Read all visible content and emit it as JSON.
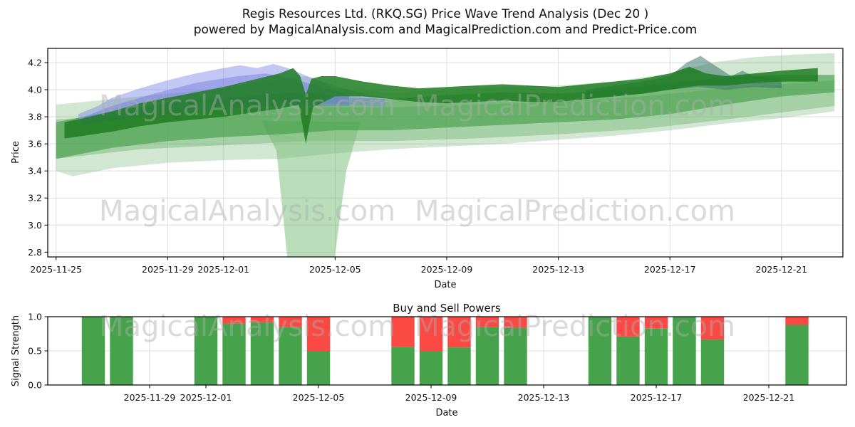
{
  "header": {
    "title": "Regis Resources Ltd. (RKQ.SG) Price Wave Trend Analysis (Dec 20 )",
    "subtitle": "powered by MagicalAnalysis.com and MagicalPrediction.com and Predict-Price.com"
  },
  "watermarks": {
    "left": "MagicalAnalysis.com",
    "right": "MagicalPrediction.com"
  },
  "colors": {
    "buy_green": "#47a34b",
    "sell_red": "#fb4a44",
    "dark_band": "#1e7d22",
    "medium_band": "#3c9b41",
    "light_band": "#69b069",
    "blue_band": "#7b83e6",
    "grid": "#dcdcdc",
    "spine": "#000000"
  },
  "chart_data": [
    {
      "type": "area",
      "name": "price-wave-trend",
      "ylabel": "Price",
      "xlabel": "Date",
      "x_unit": "days since 2025-11-25",
      "xlim": [
        -0.3,
        28.2
      ],
      "ylim": [
        2.765,
        4.305
      ],
      "grid": true,
      "xticks": {
        "positions": [
          0,
          4,
          6,
          10,
          14,
          18,
          22,
          26
        ],
        "labels": [
          "2025-11-25",
          "2025-11-29",
          "2025-12-01",
          "2025-12-05",
          "2025-12-09",
          "2025-12-13",
          "2025-12-17",
          "2025-12-21"
        ]
      },
      "yticks": {
        "values": [
          2.8,
          3.0,
          3.2,
          3.4,
          3.6,
          3.8,
          4.0,
          4.2
        ],
        "labels": [
          "2.8",
          "3.0",
          "3.2",
          "3.4",
          "3.6",
          "3.8",
          "4.0",
          "4.2"
        ]
      },
      "bands": [
        {
          "name": "outer-light-band",
          "color": "#69b069",
          "opacity": 0.3,
          "top": [
            [
              0,
              3.89
            ],
            [
              2,
              3.93
            ],
            [
              4,
              3.97
            ],
            [
              6,
              4.01
            ],
            [
              7.5,
              4.06
            ],
            [
              9,
              4.1
            ],
            [
              10,
              4.01
            ],
            [
              12,
              3.98
            ],
            [
              14,
              4.0
            ],
            [
              16,
              4.02
            ],
            [
              18,
              4.03
            ],
            [
              20,
              4.06
            ],
            [
              22,
              4.12
            ],
            [
              23.5,
              4.2
            ],
            [
              25,
              4.24
            ],
            [
              26.5,
              4.26
            ],
            [
              27.9,
              4.27
            ]
          ],
          "bottom": [
            [
              0,
              3.4
            ],
            [
              0.6,
              3.36
            ],
            [
              2,
              3.42
            ],
            [
              4,
              3.46
            ],
            [
              6,
              3.48
            ],
            [
              8,
              3.49
            ],
            [
              10,
              3.53
            ],
            [
              12,
              3.56
            ],
            [
              14,
              3.58
            ],
            [
              16,
              3.6
            ],
            [
              18,
              3.63
            ],
            [
              20,
              3.66
            ],
            [
              22,
              3.7
            ],
            [
              24,
              3.75
            ],
            [
              26,
              3.79
            ],
            [
              27.9,
              3.84
            ]
          ]
        },
        {
          "name": "second-light-band",
          "color": "#57a657",
          "opacity": 0.35,
          "top": [
            [
              0,
              3.78
            ],
            [
              3,
              3.82
            ],
            [
              6,
              3.85
            ],
            [
              9,
              3.87
            ],
            [
              12,
              3.87
            ],
            [
              15,
              3.89
            ],
            [
              18,
              3.91
            ],
            [
              21,
              3.95
            ],
            [
              24,
              4.01
            ],
            [
              26,
              4.04
            ],
            [
              27.9,
              4.07
            ]
          ],
          "bottom": [
            [
              0,
              3.49
            ],
            [
              3,
              3.56
            ],
            [
              6,
              3.59
            ],
            [
              9,
              3.62
            ],
            [
              12,
              3.62
            ],
            [
              15,
              3.64
            ],
            [
              18,
              3.67
            ],
            [
              21,
              3.71
            ],
            [
              24,
              3.78
            ],
            [
              27.9,
              3.88
            ]
          ]
        },
        {
          "name": "dip-funnel-band",
          "color": "#74b974",
          "opacity": 0.5,
          "poly": [
            [
              7.35,
              3.77
            ],
            [
              10.9,
              3.76
            ],
            [
              10.4,
              3.4
            ],
            [
              9.9,
              2.63
            ],
            [
              8.35,
              2.63
            ],
            [
              7.9,
              3.55
            ]
          ]
        },
        {
          "name": "medium-band",
          "color": "#3c9b41",
          "opacity": 0.6,
          "top": [
            [
              0,
              3.76
            ],
            [
              2,
              3.84
            ],
            [
              4,
              3.9
            ],
            [
              6,
              3.94
            ],
            [
              8,
              3.97
            ],
            [
              9,
              3.98
            ],
            [
              10,
              3.95
            ],
            [
              12,
              3.93
            ],
            [
              14,
              3.96
            ],
            [
              16,
              3.98
            ],
            [
              18,
              3.97
            ],
            [
              20,
              4.0
            ],
            [
              22,
              4.05
            ],
            [
              24,
              4.09
            ],
            [
              26,
              4.11
            ],
            [
              27.9,
              4.11
            ]
          ],
          "bottom": [
            [
              0,
              3.49
            ],
            [
              2,
              3.57
            ],
            [
              4,
              3.62
            ],
            [
              6,
              3.65
            ],
            [
              8,
              3.67
            ],
            [
              10,
              3.7
            ],
            [
              12,
              3.7
            ],
            [
              14,
              3.72
            ],
            [
              16,
              3.74
            ],
            [
              18,
              3.76
            ],
            [
              20,
              3.78
            ],
            [
              22,
              3.82
            ],
            [
              24,
              3.89
            ],
            [
              26,
              3.95
            ],
            [
              27.9,
              3.98
            ]
          ]
        },
        {
          "name": "blue-outer-band",
          "color": "#7b83e6",
          "opacity": 0.45,
          "top": [
            [
              0.8,
              3.82
            ],
            [
              1.5,
              3.88
            ],
            [
              2,
              3.94
            ],
            [
              3,
              4.01
            ],
            [
              4,
              4.07
            ],
            [
              5,
              4.12
            ],
            [
              6,
              4.16
            ],
            [
              6.6,
              4.18
            ],
            [
              7.2,
              4.16
            ],
            [
              7.8,
              4.19
            ],
            [
              8.3,
              4.16
            ],
            [
              9,
              4.1
            ],
            [
              10,
              4.03
            ],
            [
              11,
              3.97
            ],
            [
              11.8,
              3.94
            ]
          ],
          "bottom": [
            [
              0.8,
              3.74
            ],
            [
              2,
              3.78
            ],
            [
              4,
              3.84
            ],
            [
              6,
              3.88
            ],
            [
              8,
              3.9
            ],
            [
              10,
              3.9
            ],
            [
              11.8,
              3.87
            ]
          ]
        },
        {
          "name": "blue-inner-band",
          "color": "#5a63d8",
          "opacity": 0.35,
          "top": [
            [
              1,
              3.8
            ],
            [
              2,
              3.88
            ],
            [
              3.5,
              3.97
            ],
            [
              5,
              4.05
            ],
            [
              6.5,
              4.1
            ],
            [
              7.5,
              4.12
            ],
            [
              8.5,
              4.08
            ],
            [
              9.5,
              4.02
            ],
            [
              10.5,
              3.96
            ]
          ],
          "bottom": [
            [
              1,
              3.74
            ],
            [
              2.5,
              3.79
            ],
            [
              5,
              3.84
            ],
            [
              8,
              3.88
            ],
            [
              10.5,
              3.88
            ]
          ]
        },
        {
          "name": "teal-peak-band",
          "color": "#2f6e62",
          "opacity": 0.5,
          "top": [
            [
              19,
              4.0
            ],
            [
              20,
              4.03
            ],
            [
              21,
              4.06
            ],
            [
              22,
              4.1
            ],
            [
              22.6,
              4.2
            ],
            [
              23.1,
              4.25
            ],
            [
              23.6,
              4.18
            ],
            [
              24.2,
              4.1
            ],
            [
              24.6,
              4.14
            ],
            [
              25,
              4.1
            ],
            [
              26,
              4.08
            ]
          ],
          "bottom": [
            [
              19,
              3.93
            ],
            [
              20,
              3.95
            ],
            [
              21,
              3.97
            ],
            [
              22,
              4.0
            ],
            [
              23,
              4.02
            ],
            [
              24,
              4.0
            ],
            [
              25,
              4.02
            ],
            [
              26,
              4.01
            ]
          ]
        },
        {
          "name": "dark-core-band",
          "color": "#1e7d22",
          "opacity": 0.85,
          "top": [
            [
              0.3,
              3.76
            ],
            [
              1,
              3.79
            ],
            [
              2,
              3.84
            ],
            [
              3,
              3.9
            ],
            [
              4,
              3.94
            ],
            [
              5,
              3.98
            ],
            [
              6,
              4.02
            ],
            [
              7,
              4.07
            ],
            [
              8,
              4.12
            ],
            [
              8.5,
              4.16
            ],
            [
              8.75,
              4.1
            ],
            [
              8.95,
              3.96
            ],
            [
              9.15,
              4.08
            ],
            [
              9.5,
              4.1
            ],
            [
              10,
              4.1
            ],
            [
              11,
              4.06
            ],
            [
              12,
              4.03
            ],
            [
              13,
              4.01
            ],
            [
              14,
              4.02
            ],
            [
              15,
              4.03
            ],
            [
              16,
              4.04
            ],
            [
              17,
              4.03
            ],
            [
              18,
              4.02
            ],
            [
              19,
              4.04
            ],
            [
              20,
              4.06
            ],
            [
              21,
              4.08
            ],
            [
              22,
              4.12
            ],
            [
              22.7,
              4.17
            ],
            [
              23.3,
              4.12
            ],
            [
              24,
              4.1
            ],
            [
              25,
              4.12
            ],
            [
              26,
              4.14
            ],
            [
              27.3,
              4.16
            ]
          ],
          "bottom": [
            [
              0.3,
              3.64
            ],
            [
              1,
              3.66
            ],
            [
              2,
              3.69
            ],
            [
              3,
              3.73
            ],
            [
              4,
              3.76
            ],
            [
              5,
              3.78
            ],
            [
              6,
              3.8
            ],
            [
              7,
              3.83
            ],
            [
              8,
              3.86
            ],
            [
              8.7,
              3.89
            ],
            [
              8.95,
              3.6
            ],
            [
              9.2,
              3.87
            ],
            [
              10,
              3.95
            ],
            [
              11,
              3.95
            ],
            [
              12,
              3.93
            ],
            [
              13,
              3.91
            ],
            [
              14,
              3.9
            ],
            [
              15,
              3.91
            ],
            [
              16,
              3.92
            ],
            [
              17,
              3.91
            ],
            [
              18,
              3.91
            ],
            [
              19,
              3.93
            ],
            [
              20,
              3.95
            ],
            [
              21,
              3.97
            ],
            [
              22,
              4.0
            ],
            [
              23,
              4.03
            ],
            [
              24,
              4.03
            ],
            [
              25,
              4.05
            ],
            [
              26,
              4.06
            ],
            [
              27.3,
              4.06
            ]
          ]
        }
      ]
    },
    {
      "type": "bar",
      "name": "buy-sell-powers",
      "title": "Buy and Sell Powers",
      "ylabel": "Signal Strength",
      "xlabel": "Date",
      "x_unit": "days since 2025-11-25",
      "xlim": [
        0.38,
        28.76
      ],
      "ylim": [
        0,
        1
      ],
      "bar_width_days": 0.82,
      "stack_order": [
        "buy",
        "sell"
      ],
      "xticks": {
        "positions": [
          4,
          6,
          10,
          14,
          18,
          22,
          26
        ],
        "labels": [
          "2025-11-29",
          "2025-12-01",
          "2025-12-05",
          "2025-12-09",
          "2025-12-13",
          "2025-12-17",
          "2025-12-21"
        ]
      },
      "yticks": {
        "values": [
          0.0,
          0.5,
          1.0
        ],
        "labels": [
          "0.0",
          "0.5",
          "1.0"
        ]
      },
      "bars": [
        {
          "date": "2025-11-27",
          "d": 2,
          "buy": 1.0,
          "sell": 0.0
        },
        {
          "date": "2025-11-28",
          "d": 3,
          "buy": 1.0,
          "sell": 0.0
        },
        {
          "date": "2025-12-01",
          "d": 6,
          "buy": 1.0,
          "sell": 0.0
        },
        {
          "date": "2025-12-02",
          "d": 7,
          "buy": 0.9,
          "sell": 0.1
        },
        {
          "date": "2025-12-03",
          "d": 8,
          "buy": 0.92,
          "sell": 0.08
        },
        {
          "date": "2025-12-04",
          "d": 9,
          "buy": 0.85,
          "sell": 0.15
        },
        {
          "date": "2025-12-05",
          "d": 10,
          "buy": 0.5,
          "sell": 0.5
        },
        {
          "date": "2025-12-08",
          "d": 13,
          "buy": 0.56,
          "sell": 0.44
        },
        {
          "date": "2025-12-09",
          "d": 14,
          "buy": 0.5,
          "sell": 0.5
        },
        {
          "date": "2025-12-10",
          "d": 15,
          "buy": 0.55,
          "sell": 0.45
        },
        {
          "date": "2025-12-11",
          "d": 16,
          "buy": 0.85,
          "sell": 0.15
        },
        {
          "date": "2025-12-12",
          "d": 17,
          "buy": 0.84,
          "sell": 0.16
        },
        {
          "date": "2025-12-15",
          "d": 20,
          "buy": 1.0,
          "sell": 0.0
        },
        {
          "date": "2025-12-16",
          "d": 21,
          "buy": 0.71,
          "sell": 0.29
        },
        {
          "date": "2025-12-17",
          "d": 22,
          "buy": 0.83,
          "sell": 0.17
        },
        {
          "date": "2025-12-18",
          "d": 23,
          "buy": 1.0,
          "sell": 0.0
        },
        {
          "date": "2025-12-19",
          "d": 24,
          "buy": 0.67,
          "sell": 0.33
        },
        {
          "date": "2025-12-22",
          "d": 27,
          "buy": 0.88,
          "sell": 0.12
        }
      ]
    }
  ]
}
